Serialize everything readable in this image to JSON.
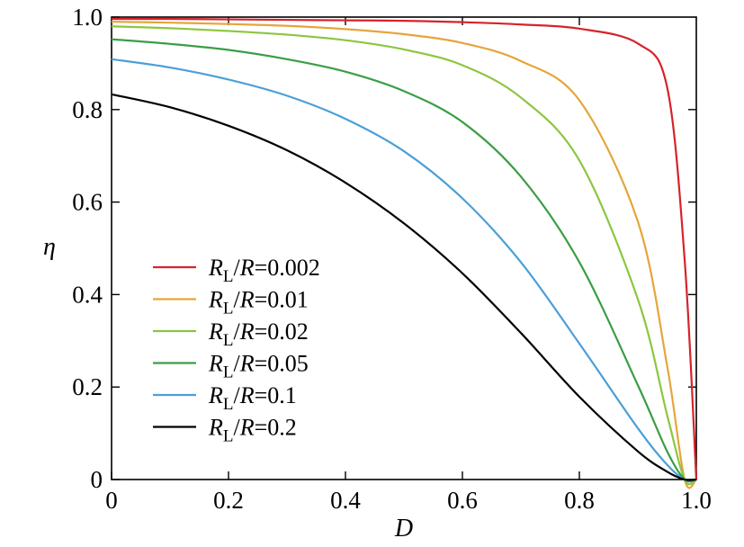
{
  "chart_data": {
    "type": "line",
    "title": "",
    "xlabel": "D",
    "ylabel": "η",
    "xlim": [
      0,
      1
    ],
    "ylim": [
      0,
      1
    ],
    "xticks": [
      0,
      0.2,
      0.4,
      0.6,
      0.8,
      1.0
    ],
    "xtick_labels": [
      "0",
      "0.2",
      "0.4",
      "0.6",
      "0.8",
      "1.0"
    ],
    "yticks": [
      0,
      0.2,
      0.4,
      0.6,
      0.8,
      1.0
    ],
    "ytick_labels": [
      "0",
      "0.2",
      "0.4",
      "0.6",
      "0.8",
      "1.0"
    ],
    "grid": false,
    "legend_position": "center-left",
    "x": [
      0,
      0.1,
      0.2,
      0.3,
      0.4,
      0.5,
      0.6,
      0.7,
      0.8,
      0.9,
      0.95,
      0.98,
      1.0
    ],
    "series": [
      {
        "name_prefix": "R",
        "name_sub": "L",
        "name_mid": "/",
        "name_den": "R",
        "name_value": "=0.002",
        "color": "#d6232b",
        "values": [
          0.996,
          0.996,
          0.995,
          0.994,
          0.993,
          0.992,
          0.989,
          0.984,
          0.975,
          0.943,
          0.849,
          0.476,
          0
        ]
      },
      {
        "name_prefix": "R",
        "name_sub": "L",
        "name_mid": "/",
        "name_den": "R",
        "name_value": "=0.01",
        "color": "#e4a63b",
        "values": [
          0.99,
          0.988,
          0.985,
          0.981,
          0.974,
          0.963,
          0.944,
          0.905,
          0.82,
          0.558,
          0.247,
          0.0,
          0
        ]
      },
      {
        "name_prefix": "R",
        "name_sub": "L",
        "name_mid": "/",
        "name_den": "R",
        "name_value": "=0.02",
        "color": "#8cc63f",
        "values": [
          0.98,
          0.976,
          0.97,
          0.962,
          0.95,
          0.93,
          0.896,
          0.826,
          0.69,
          0.39,
          0.14,
          0.0,
          0
        ]
      },
      {
        "name_prefix": "R",
        "name_sub": "L",
        "name_mid": "/",
        "name_den": "R",
        "name_value": "=0.05",
        "color": "#3a9e44",
        "values": [
          0.952,
          0.942,
          0.929,
          0.909,
          0.882,
          0.84,
          0.773,
          0.655,
          0.47,
          0.204,
          0.061,
          0.0,
          0
        ]
      },
      {
        "name_prefix": "R",
        "name_sub": "L",
        "name_mid": "/",
        "name_den": "R",
        "name_value": "=0.1",
        "color": "#4a9fd8",
        "values": [
          0.909,
          0.891,
          0.865,
          0.83,
          0.78,
          0.71,
          0.608,
          0.47,
          0.294,
          0.111,
          0.032,
          0.0,
          0
        ]
      },
      {
        "name_prefix": "R",
        "name_sub": "L",
        "name_mid": "/",
        "name_den": "R",
        "name_value": "=0.2",
        "color": "#000000",
        "values": [
          0.833,
          0.805,
          0.765,
          0.712,
          0.642,
          0.554,
          0.446,
          0.317,
          0.179,
          0.061,
          0.017,
          0.0,
          0
        ]
      }
    ]
  }
}
